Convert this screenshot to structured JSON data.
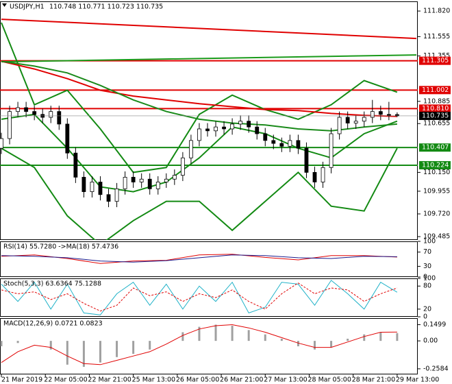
{
  "chart_data": [
    {
      "type": "candlestick",
      "title": "USDJPY,H1",
      "subtitle": "110.748 110.771 110.723 110.735",
      "xlim": [
        -0.5,
        151.5
      ],
      "ylim": [
        109.45,
        111.92
      ],
      "yticks": [
        {
          "value": 111.82,
          "label": "111.820"
        },
        111.555,
        111.355,
        110.885,
        110.655,
        {
          "value": 110.15,
          "label": "110.150"
        },
        109.955,
        {
          "value": 109.72,
          "label": "109.720"
        },
        109.485
      ],
      "up_color": "#ffffff",
      "down_color": "#000000",
      "x": [
        0,
        3,
        6,
        9,
        12,
        15,
        18,
        21,
        24,
        27,
        30,
        33,
        36,
        39,
        42,
        45,
        48,
        51,
        54,
        57,
        60,
        63,
        66,
        69,
        72,
        75,
        78,
        81,
        84,
        87,
        90,
        93,
        96,
        99,
        102,
        105,
        108,
        111,
        114,
        117,
        120,
        123,
        126,
        129,
        132,
        135,
        138,
        141,
        144
      ],
      "open": [
        110.4,
        110.5,
        110.78,
        110.82,
        110.78,
        110.75,
        110.72,
        110.78,
        110.65,
        110.35,
        110.1,
        109.95,
        110.05,
        109.92,
        109.85,
        109.98,
        110.1,
        110.05,
        110.08,
        109.98,
        110.05,
        110.08,
        110.12,
        110.3,
        110.48,
        110.6,
        110.58,
        110.62,
        110.6,
        110.65,
        110.68,
        110.62,
        110.55,
        110.48,
        110.45,
        110.42,
        110.48,
        110.4,
        110.15,
        110.05,
        110.2,
        110.55,
        110.72,
        110.66,
        110.68,
        110.72,
        110.78,
        110.75,
        110.748
      ],
      "high": [
        110.56,
        110.84,
        110.88,
        110.88,
        110.84,
        110.81,
        110.84,
        110.84,
        110.71,
        110.41,
        110.16,
        110.11,
        110.11,
        109.98,
        110.04,
        110.16,
        110.16,
        110.14,
        110.14,
        110.11,
        110.14,
        110.18,
        110.36,
        110.54,
        110.66,
        110.66,
        110.68,
        110.68,
        110.71,
        110.74,
        110.74,
        110.68,
        110.61,
        110.54,
        110.51,
        110.54,
        110.54,
        110.46,
        110.21,
        110.26,
        110.61,
        110.78,
        110.78,
        110.74,
        110.78,
        110.9,
        110.84,
        110.88,
        110.771
      ],
      "low": [
        110.34,
        110.44,
        110.72,
        110.72,
        110.69,
        110.66,
        110.66,
        110.59,
        110.29,
        110.04,
        109.89,
        109.89,
        109.86,
        109.79,
        109.79,
        109.92,
        109.99,
        109.99,
        109.92,
        109.92,
        109.99,
        110.02,
        110.06,
        110.24,
        110.42,
        110.52,
        110.52,
        110.54,
        110.54,
        110.59,
        110.56,
        110.49,
        110.42,
        110.39,
        110.36,
        110.36,
        110.34,
        110.09,
        109.99,
        109.99,
        110.14,
        110.49,
        110.6,
        110.6,
        110.62,
        110.66,
        110.69,
        110.69,
        110.723
      ],
      "close": [
        110.5,
        110.78,
        110.82,
        110.78,
        110.75,
        110.72,
        110.78,
        110.65,
        110.35,
        110.1,
        109.95,
        110.05,
        109.92,
        109.85,
        109.98,
        110.1,
        110.05,
        110.08,
        109.98,
        110.05,
        110.08,
        110.12,
        110.3,
        110.48,
        110.6,
        110.58,
        110.62,
        110.6,
        110.65,
        110.68,
        110.62,
        110.55,
        110.48,
        110.45,
        110.42,
        110.48,
        110.4,
        110.15,
        110.05,
        110.2,
        110.55,
        110.72,
        110.66,
        110.68,
        110.72,
        110.78,
        110.75,
        110.74,
        110.735
      ],
      "series": [
        {
          "type": "line",
          "color": "#e00000",
          "x": [
            0,
            151
          ],
          "values": [
            111.735,
            111.536
          ]
        },
        {
          "type": "line",
          "color": "#1a9a1a",
          "x": [
            0,
            151
          ],
          "values": [
            111.295,
            111.366
          ]
        },
        {
          "type": "line",
          "color": "#138a13",
          "x": [
            0,
            12,
            24,
            36,
            48,
            60,
            72,
            84,
            96,
            108,
            120,
            132,
            144
          ],
          "values": [
            111.7,
            110.85,
            111.0,
            110.6,
            110.15,
            110.2,
            110.75,
            110.95,
            110.8,
            110.7,
            110.85,
            111.1,
            110.98
          ]
        },
        {
          "type": "line",
          "color": "#138a13",
          "x": [
            0,
            12,
            24,
            36,
            48,
            60,
            72,
            84,
            96,
            108,
            120,
            132,
            144
          ],
          "values": [
            110.4,
            110.2,
            109.7,
            109.4,
            109.65,
            109.85,
            109.85,
            109.55,
            109.85,
            110.15,
            109.8,
            109.75,
            110.4
          ]
        },
        {
          "type": "line",
          "color": "#138a13",
          "x": [
            0,
            12,
            24,
            36,
            48,
            60,
            72,
            84,
            96,
            108,
            120,
            132,
            144
          ],
          "values": [
            110.7,
            110.75,
            110.4,
            110.0,
            109.95,
            110.05,
            110.3,
            110.62,
            110.55,
            110.4,
            110.3,
            110.55,
            110.68
          ]
        },
        {
          "type": "line",
          "color": "#e00000",
          "x": [
            0,
            12,
            24,
            36,
            48,
            60,
            72,
            84,
            96,
            108,
            120,
            132,
            144
          ],
          "values": [
            111.3,
            111.22,
            111.12,
            111.0,
            110.94,
            110.9,
            110.86,
            110.83,
            110.8,
            110.79,
            110.76,
            110.74,
            110.73
          ]
        },
        {
          "type": "line",
          "color": "#1a8a1a",
          "x": [
            0,
            12,
            24,
            36,
            48,
            60,
            72,
            84,
            96,
            108,
            120,
            132,
            144
          ],
          "values": [
            111.3,
            111.25,
            111.18,
            111.05,
            110.9,
            110.78,
            110.7,
            110.66,
            110.64,
            110.6,
            110.58,
            110.62,
            110.65
          ]
        }
      ],
      "levels": [
        {
          "value": 111.305,
          "color": "#e00000"
        },
        {
          "value": 111.002,
          "color": "#e00000"
        },
        {
          "value": 110.81,
          "label": "110.810",
          "color": "#e00000"
        },
        {
          "value": 110.407,
          "color": "#138a13"
        },
        {
          "value": 110.224,
          "color": "#138a13"
        }
      ],
      "last_price": 110.735
    },
    {
      "type": "oscillator",
      "title": "RSI(14) 55.7280 ->MA(18) 57.4736",
      "ylim": [
        0,
        100
      ],
      "yticks": [
        100,
        70,
        30,
        0
      ],
      "series": [
        {
          "type": "line",
          "color": "#e00000",
          "x": [
            0,
            12,
            24,
            36,
            48,
            60,
            72,
            84,
            96,
            108,
            120,
            132,
            144
          ],
          "values": [
            58,
            62,
            52,
            38,
            45,
            47,
            62,
            64,
            55,
            48,
            60,
            60,
            56
          ]
        },
        {
          "type": "line",
          "color": "#1a1a8c",
          "x": [
            0,
            12,
            24,
            36,
            48,
            60,
            72,
            84,
            96,
            108,
            120,
            132,
            144
          ],
          "values": [
            60,
            58,
            54,
            45,
            42,
            46,
            54,
            62,
            60,
            54,
            52,
            58,
            57
          ]
        }
      ]
    },
    {
      "type": "oscillator",
      "title": "Stoch(5,3,3) 63.6364 75.1288",
      "ylim": [
        0,
        100
      ],
      "yticks": [
        100,
        80,
        20,
        0
      ],
      "series": [
        {
          "type": "line",
          "color": "#20b2c8",
          "x": [
            0,
            6,
            12,
            18,
            24,
            30,
            36,
            42,
            48,
            54,
            60,
            66,
            72,
            78,
            84,
            90,
            96,
            102,
            108,
            114,
            120,
            126,
            132,
            138,
            144
          ],
          "values": [
            85,
            40,
            90,
            20,
            85,
            10,
            5,
            60,
            90,
            30,
            85,
            20,
            80,
            40,
            90,
            10,
            25,
            90,
            85,
            30,
            95,
            60,
            20,
            90,
            64
          ]
        },
        {
          "type": "line",
          "color": "#e00000",
          "dashed": true,
          "x": [
            0,
            6,
            12,
            18,
            24,
            30,
            36,
            42,
            48,
            54,
            60,
            66,
            72,
            78,
            84,
            90,
            96,
            102,
            108,
            114,
            120,
            126,
            132,
            138,
            144
          ],
          "values": [
            70,
            60,
            65,
            45,
            60,
            35,
            15,
            30,
            75,
            55,
            65,
            40,
            60,
            50,
            70,
            40,
            20,
            60,
            88,
            60,
            75,
            70,
            40,
            60,
            75
          ]
        }
      ]
    },
    {
      "type": "oscillator",
      "title": "MACD(12,26,9) 0.0721 0.0823",
      "ylim": [
        -0.31,
        0.21
      ],
      "yticks": [
        0.1499,
        {
          "value": 0,
          "label": "0.00"
        },
        -0.2584
      ],
      "xticks": [
        {
          "value": 0,
          "label": "21 Mar 2019"
        },
        {
          "value": 16,
          "label": "22 Mar 05:00"
        },
        {
          "value": 32,
          "label": "22 Mar 21:00"
        },
        {
          "value": 48,
          "label": "25 Mar 13:00"
        },
        {
          "value": 64,
          "label": "26 Mar 05:00"
        },
        {
          "value": 80,
          "label": "26 Mar 21:00"
        },
        {
          "value": 96,
          "label": "27 Mar 13:00"
        },
        {
          "value": 112,
          "label": "28 Mar 05:00"
        },
        {
          "value": 128,
          "label": "28 Mar 21:00"
        },
        {
          "value": 144,
          "label": "29 Mar 13:00"
        }
      ],
      "series": [
        {
          "type": "bar",
          "color": "#a0a0a0",
          "x": [
            0,
            6,
            12,
            18,
            24,
            30,
            36,
            42,
            48,
            54,
            60,
            66,
            72,
            78,
            84,
            90,
            96,
            102,
            108,
            114,
            120,
            126,
            132,
            138,
            144
          ],
          "values": [
            -0.05,
            -0.02,
            0.0,
            -0.08,
            -0.22,
            -0.24,
            -0.2,
            -0.15,
            -0.12,
            -0.08,
            0.0,
            0.08,
            0.13,
            0.15,
            0.14,
            0.1,
            0.06,
            0.02,
            -0.05,
            -0.08,
            -0.06,
            0.02,
            0.06,
            0.08,
            0.072
          ]
        },
        {
          "type": "line",
          "color": "#e00000",
          "x": [
            0,
            6,
            12,
            18,
            24,
            30,
            36,
            42,
            48,
            54,
            60,
            66,
            72,
            78,
            84,
            90,
            96,
            102,
            108,
            114,
            120,
            126,
            132,
            138,
            144
          ],
          "values": [
            -0.2,
            -0.1,
            -0.04,
            -0.06,
            -0.14,
            -0.21,
            -0.22,
            -0.18,
            -0.14,
            -0.1,
            -0.03,
            0.05,
            0.11,
            0.14,
            0.15,
            0.12,
            0.08,
            0.03,
            -0.02,
            -0.06,
            -0.06,
            -0.01,
            0.04,
            0.08,
            0.082
          ]
        }
      ]
    }
  ]
}
